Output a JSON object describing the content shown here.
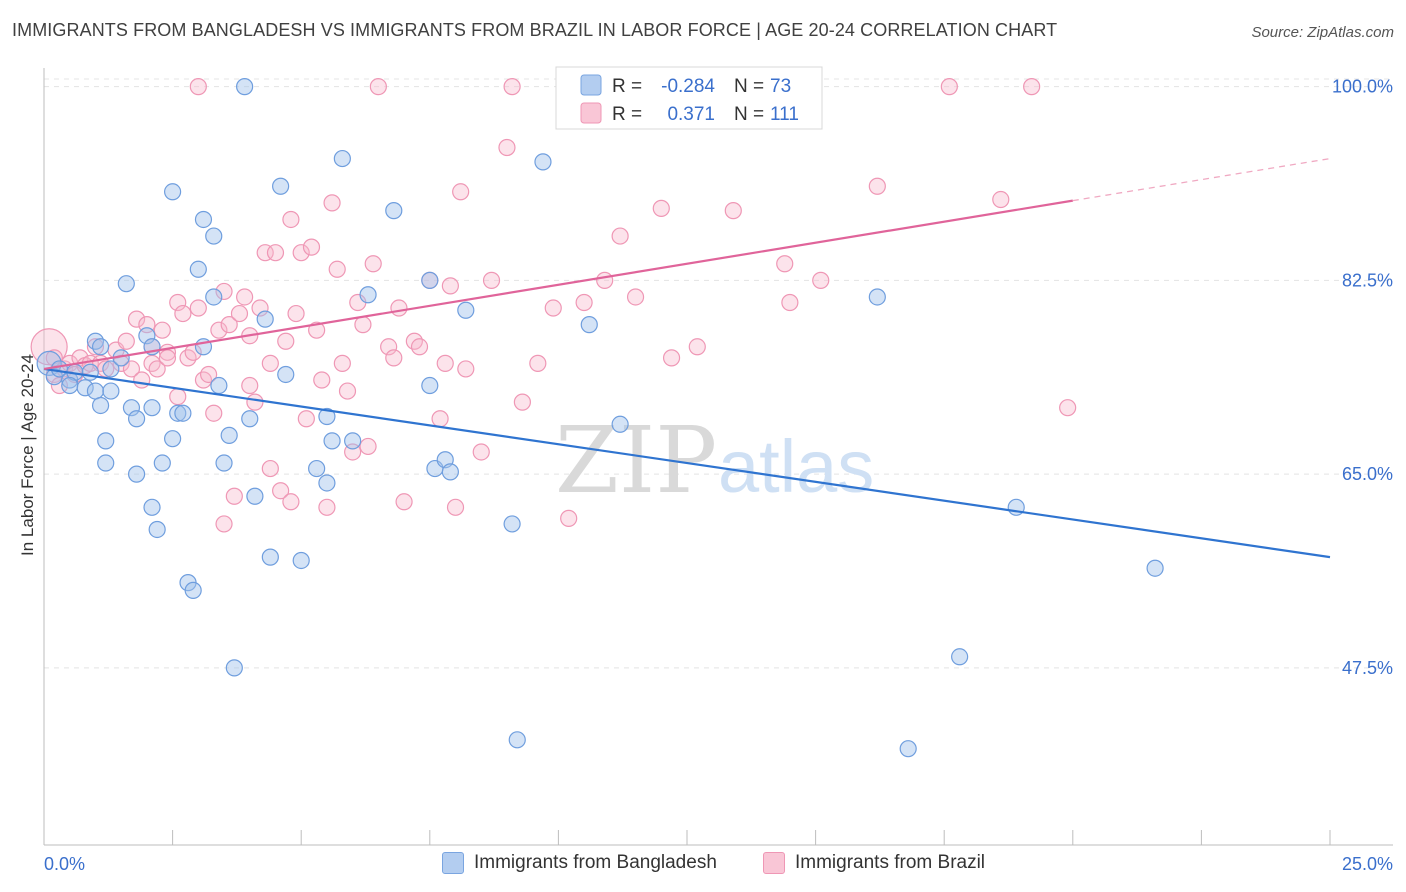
{
  "title": "IMMIGRANTS FROM BANGLADESH VS IMMIGRANTS FROM BRAZIL IN LABOR FORCE | AGE 20-24 CORRELATION CHART",
  "source": "Source: ZipAtlas.com",
  "watermark": {
    "zip": "ZIP",
    "atlas": "atlas"
  },
  "legend_stats": {
    "r_label": "R =",
    "n_label": "N =",
    "rows": [
      {
        "r": "-0.284",
        "n": "73"
      },
      {
        "r": "0.371",
        "n": "111"
      }
    ]
  },
  "chart_data": {
    "type": "scatter",
    "xlabel": "",
    "ylabel": "In Labor Force | Age 20-24",
    "x_tick_labels": [
      "0.0%",
      "25.0%"
    ],
    "y_tick_labels": [
      "100.0%",
      "82.5%",
      "65.0%",
      "47.5%"
    ],
    "y_ticks": [
      100.0,
      82.5,
      65.0,
      47.5
    ],
    "xlim": [
      0,
      25
    ],
    "ylim": [
      31.5,
      101.5
    ],
    "grid": true,
    "legend_position": "bottom",
    "colors": {
      "blue": "#5b8fd6",
      "pink": "#ee88aa",
      "blue_line": "#2f74d0",
      "pink_line": "#e0649a",
      "tick_label": "#3a6fcc"
    },
    "series": [
      {
        "name": "Immigrants from Bangladesh",
        "color": "#5b8fd6",
        "trend": {
          "x": [
            0.0,
            25.0
          ],
          "y": [
            74.5,
            57.5
          ]
        },
        "points": [
          [
            0.1,
            75.0
          ],
          [
            0.2,
            73.8
          ],
          [
            0.3,
            74.5
          ],
          [
            0.5,
            73.5
          ],
          [
            0.6,
            74.2
          ],
          [
            0.5,
            73.0
          ],
          [
            0.8,
            72.8
          ],
          [
            0.9,
            74.2
          ],
          [
            1.0,
            72.5
          ],
          [
            1.1,
            71.2
          ],
          [
            1.2,
            68.0
          ],
          [
            1.0,
            77.0
          ],
          [
            1.1,
            76.5
          ],
          [
            1.3,
            74.5
          ],
          [
            1.5,
            75.5
          ],
          [
            1.2,
            66.0
          ],
          [
            1.3,
            72.5
          ],
          [
            1.6,
            82.2
          ],
          [
            1.7,
            71.0
          ],
          [
            1.8,
            70.0
          ],
          [
            1.8,
            65.0
          ],
          [
            2.0,
            77.5
          ],
          [
            2.1,
            71.0
          ],
          [
            2.1,
            76.5
          ],
          [
            2.1,
            62.0
          ],
          [
            2.2,
            60.0
          ],
          [
            2.3,
            66.0
          ],
          [
            2.5,
            68.2
          ],
          [
            2.5,
            90.5
          ],
          [
            2.6,
            70.5
          ],
          [
            2.7,
            70.5
          ],
          [
            2.8,
            55.2
          ],
          [
            2.9,
            54.5
          ],
          [
            3.0,
            83.5
          ],
          [
            3.1,
            88.0
          ],
          [
            3.1,
            76.5
          ],
          [
            3.3,
            86.5
          ],
          [
            3.3,
            81.0
          ],
          [
            3.4,
            73.0
          ],
          [
            3.5,
            66.0
          ],
          [
            3.6,
            68.5
          ],
          [
            3.7,
            47.5
          ],
          [
            3.9,
            100.0
          ],
          [
            4.0,
            70.0
          ],
          [
            4.1,
            63.0
          ],
          [
            4.3,
            79.0
          ],
          [
            4.4,
            57.5
          ],
          [
            4.6,
            91.0
          ],
          [
            4.7,
            74.0
          ],
          [
            5.0,
            57.2
          ],
          [
            5.3,
            65.5
          ],
          [
            5.5,
            64.2
          ],
          [
            5.5,
            70.2
          ],
          [
            5.6,
            68.0
          ],
          [
            5.8,
            93.5
          ],
          [
            6.0,
            68.0
          ],
          [
            6.3,
            81.2
          ],
          [
            6.8,
            88.8
          ],
          [
            7.5,
            82.5
          ],
          [
            7.5,
            73.0
          ],
          [
            7.6,
            65.5
          ],
          [
            7.8,
            66.3
          ],
          [
            7.9,
            65.2
          ],
          [
            8.2,
            79.8
          ],
          [
            9.1,
            60.5
          ],
          [
            9.2,
            41.0
          ],
          [
            9.7,
            93.2
          ],
          [
            10.6,
            78.5
          ],
          [
            11.2,
            69.5
          ],
          [
            16.2,
            81.0
          ],
          [
            16.8,
            40.2
          ],
          [
            17.8,
            48.5
          ],
          [
            18.9,
            62.0
          ],
          [
            21.6,
            56.5
          ]
        ]
      },
      {
        "name": "Immigrants from Brazil",
        "color": "#ee88aa",
        "trend": {
          "x": [
            0.0,
            20.0
          ],
          "y": [
            74.5,
            89.7
          ]
        },
        "trend_dashed": {
          "x": [
            20.0,
            25.0
          ],
          "y": [
            89.7,
            93.5
          ]
        },
        "points": [
          [
            0.1,
            76.5
          ],
          [
            0.2,
            75.5
          ],
          [
            0.2,
            74.0
          ],
          [
            0.3,
            73.0
          ],
          [
            0.4,
            74.5
          ],
          [
            0.5,
            75.0
          ],
          [
            0.6,
            74.0
          ],
          [
            0.7,
            75.5
          ],
          [
            0.8,
            74.8
          ],
          [
            0.9,
            75.0
          ],
          [
            1.0,
            76.5
          ],
          [
            1.1,
            75.0
          ],
          [
            1.2,
            74.5
          ],
          [
            1.4,
            76.2
          ],
          [
            1.5,
            75.0
          ],
          [
            1.6,
            77.0
          ],
          [
            1.7,
            74.5
          ],
          [
            1.8,
            79.0
          ],
          [
            1.9,
            73.5
          ],
          [
            2.0,
            78.5
          ],
          [
            2.1,
            75.0
          ],
          [
            2.1,
            76.5
          ],
          [
            2.2,
            74.5
          ],
          [
            2.3,
            78.0
          ],
          [
            2.4,
            76.0
          ],
          [
            2.4,
            75.5
          ],
          [
            2.6,
            72.0
          ],
          [
            2.6,
            80.5
          ],
          [
            2.7,
            79.5
          ],
          [
            2.8,
            75.5
          ],
          [
            2.9,
            76.0
          ],
          [
            3.0,
            80.0
          ],
          [
            3.1,
            73.5
          ],
          [
            3.2,
            74.0
          ],
          [
            3.3,
            70.5
          ],
          [
            3.4,
            78.0
          ],
          [
            3.5,
            81.5
          ],
          [
            3.5,
            60.5
          ],
          [
            3.6,
            78.5
          ],
          [
            3.7,
            63.0
          ],
          [
            3.8,
            79.5
          ],
          [
            3.9,
            81.0
          ],
          [
            4.0,
            77.5
          ],
          [
            4.0,
            73.0
          ],
          [
            4.1,
            71.5
          ],
          [
            4.2,
            80.0
          ],
          [
            4.3,
            85.0
          ],
          [
            4.4,
            75.0
          ],
          [
            4.4,
            65.5
          ],
          [
            4.5,
            85.0
          ],
          [
            4.6,
            63.5
          ],
          [
            4.7,
            77.0
          ],
          [
            4.8,
            88.0
          ],
          [
            4.8,
            62.5
          ],
          [
            4.9,
            79.5
          ],
          [
            5.0,
            85.0
          ],
          [
            5.1,
            70.0
          ],
          [
            5.2,
            85.5
          ],
          [
            5.3,
            78.0
          ],
          [
            5.4,
            73.5
          ],
          [
            5.5,
            62.0
          ],
          [
            5.6,
            89.5
          ],
          [
            5.7,
            83.5
          ],
          [
            5.8,
            75.0
          ],
          [
            5.9,
            72.5
          ],
          [
            6.0,
            67.0
          ],
          [
            6.1,
            80.5
          ],
          [
            6.2,
            78.5
          ],
          [
            6.3,
            67.5
          ],
          [
            6.4,
            84.0
          ],
          [
            6.5,
            100.0
          ],
          [
            6.7,
            76.5
          ],
          [
            6.8,
            75.5
          ],
          [
            6.9,
            80.0
          ],
          [
            7.0,
            62.5
          ],
          [
            7.2,
            77.0
          ],
          [
            7.3,
            76.5
          ],
          [
            7.5,
            82.5
          ],
          [
            7.7,
            70.0
          ],
          [
            7.8,
            75.0
          ],
          [
            7.9,
            82.0
          ],
          [
            8.0,
            62.0
          ],
          [
            8.1,
            90.5
          ],
          [
            8.2,
            74.5
          ],
          [
            8.5,
            67.0
          ],
          [
            8.7,
            82.5
          ],
          [
            9.0,
            94.5
          ],
          [
            9.1,
            100.0
          ],
          [
            9.3,
            71.5
          ],
          [
            9.6,
            75.0
          ],
          [
            9.9,
            80.0
          ],
          [
            10.2,
            61.0
          ],
          [
            10.5,
            80.5
          ],
          [
            10.9,
            82.5
          ],
          [
            11.2,
            86.5
          ],
          [
            11.5,
            81.0
          ],
          [
            12.0,
            89.0
          ],
          [
            12.2,
            75.5
          ],
          [
            12.6,
            100.0
          ],
          [
            12.7,
            76.5
          ],
          [
            13.4,
            88.8
          ],
          [
            13.7,
            100.0
          ],
          [
            14.4,
            84.0
          ],
          [
            14.5,
            80.5
          ],
          [
            15.1,
            82.5
          ],
          [
            16.2,
            91.0
          ],
          [
            17.6,
            100.0
          ],
          [
            18.6,
            89.8
          ],
          [
            19.2,
            100.0
          ],
          [
            19.9,
            71.0
          ],
          [
            3.0,
            100.0
          ]
        ]
      }
    ]
  }
}
